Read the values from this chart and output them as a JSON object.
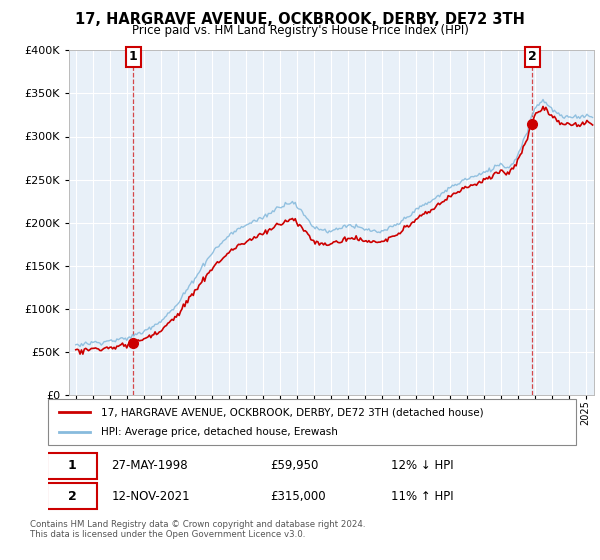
{
  "title": "17, HARGRAVE AVENUE, OCKBROOK, DERBY, DE72 3TH",
  "subtitle": "Price paid vs. HM Land Registry's House Price Index (HPI)",
  "sale1_date": "27-MAY-1998",
  "sale1_price": 59950,
  "sale1_hpi_diff": "12% ↓ HPI",
  "sale2_date": "12-NOV-2021",
  "sale2_price": 315000,
  "sale2_hpi_diff": "11% ↑ HPI",
  "legend_line1": "17, HARGRAVE AVENUE, OCKBROOK, DERBY, DE72 3TH (detached house)",
  "legend_line2": "HPI: Average price, detached house, Erewash",
  "footer": "Contains HM Land Registry data © Crown copyright and database right 2024.\nThis data is licensed under the Open Government Licence v3.0.",
  "line_color_price": "#cc0000",
  "line_color_hpi": "#88bbdd",
  "sale1_x": 1998.38,
  "sale2_x": 2021.87,
  "ylim_min": 0,
  "ylim_max": 400000,
  "xlim_min": 1994.6,
  "xlim_max": 2025.5,
  "background_color": "#e8f0f8",
  "grid_color": "#ffffff"
}
